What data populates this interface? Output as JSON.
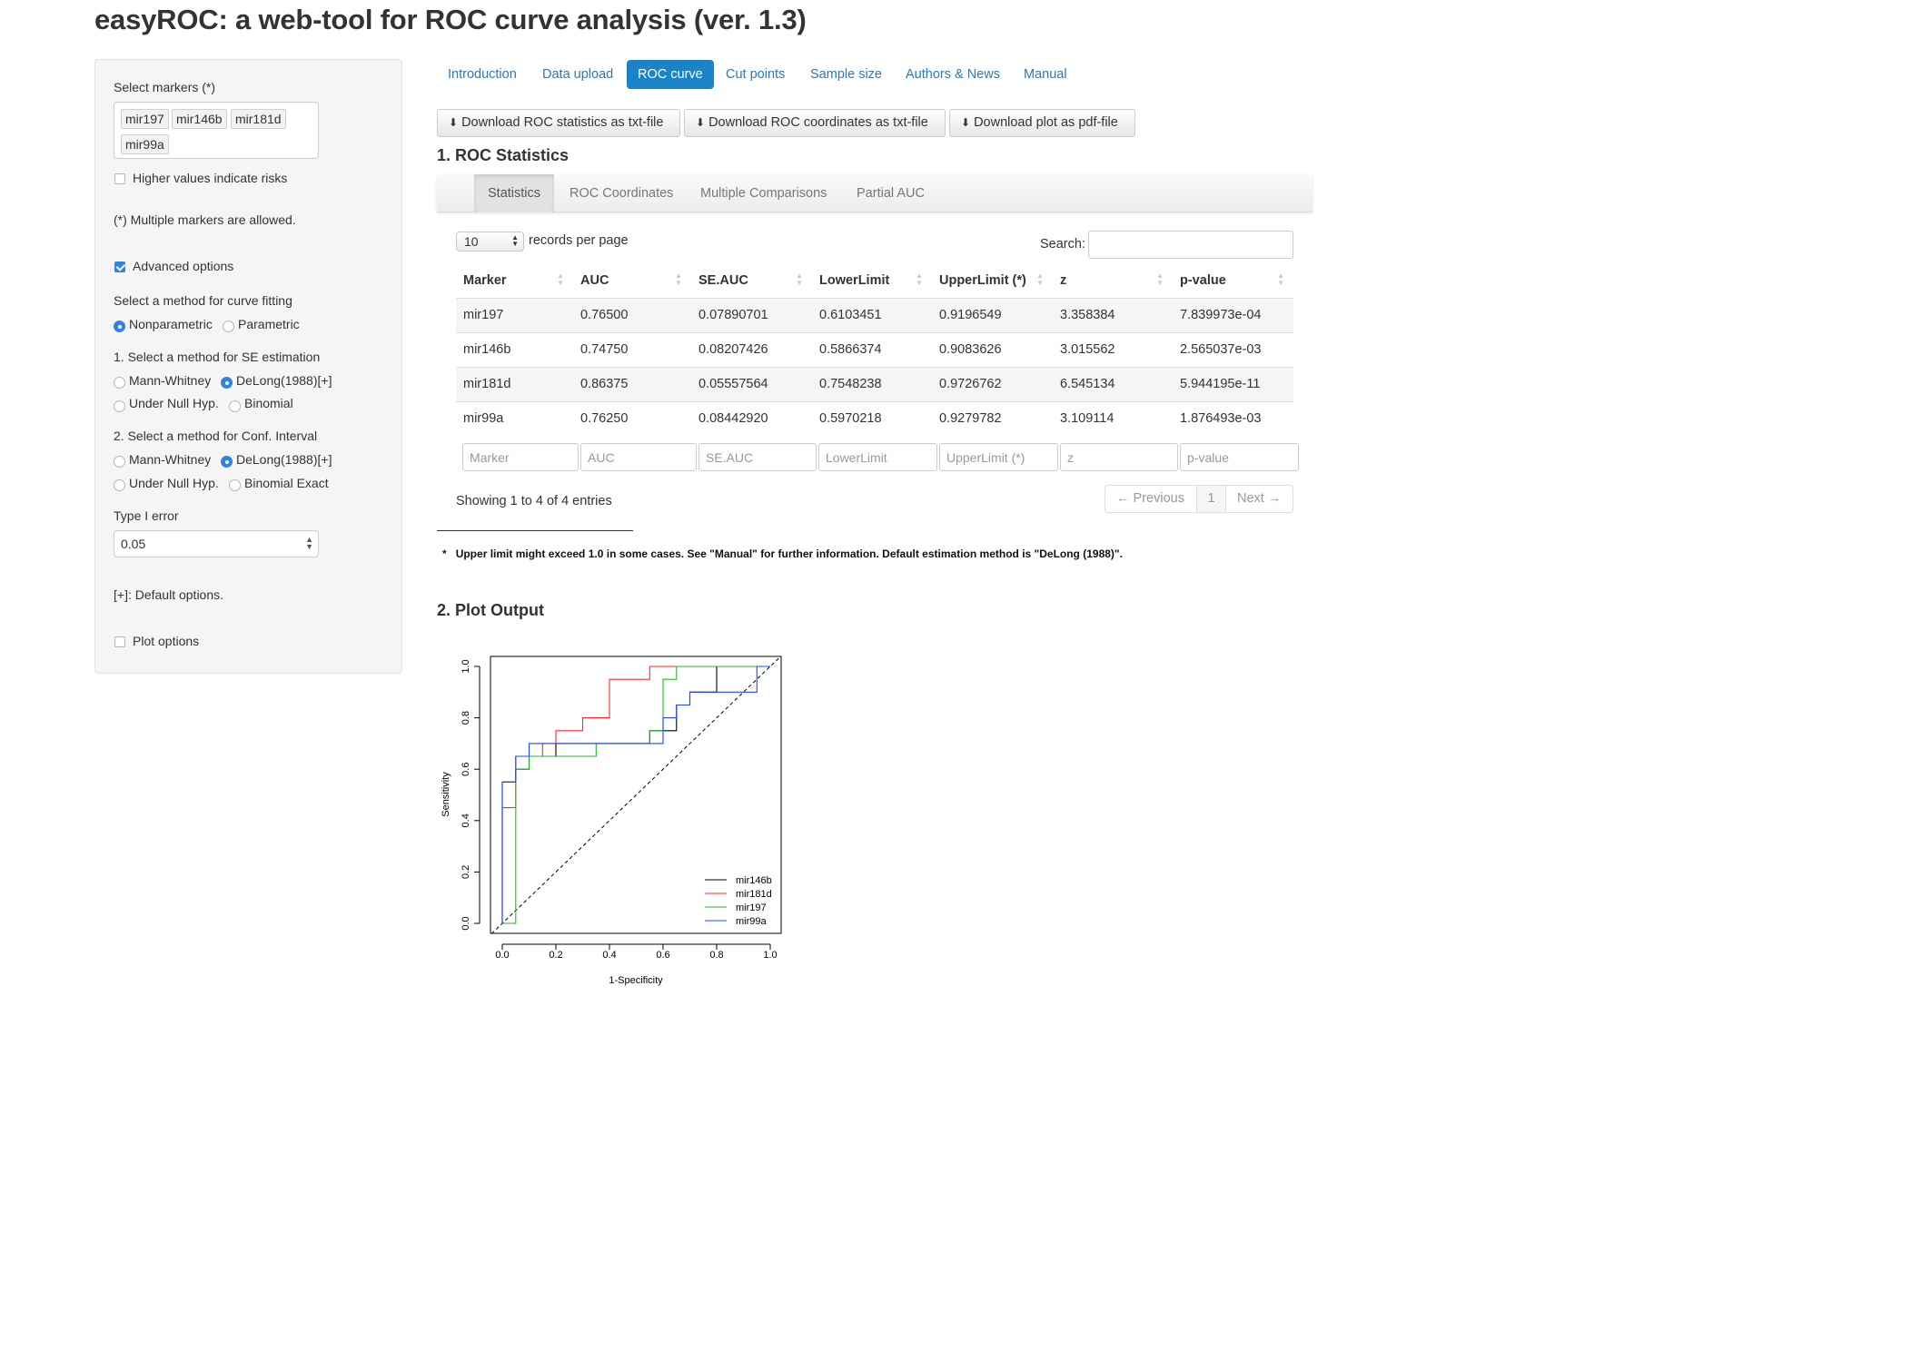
{
  "app": {
    "title": "easyROC: a web-tool for ROC curve analysis (ver. 1.3)"
  },
  "sidebar": {
    "select_markers_label": "Select markers (*)",
    "markers": [
      "mir197",
      "mir146b",
      "mir181d",
      "mir99a"
    ],
    "higher_values_label": "Higher values indicate risks",
    "higher_values_checked": false,
    "multiple_note": "(*) Multiple markers are allowed.",
    "advanced_label": "Advanced options",
    "advanced_checked": true,
    "curve_method_label": "Select a method for curve fitting",
    "curve_options": [
      "Nonparametric",
      "Parametric"
    ],
    "curve_selected": "Nonparametric",
    "se_label": "1. Select a method for SE estimation",
    "se_options": [
      "Mann-Whitney",
      "DeLong(1988)[+]",
      "Under Null Hyp.",
      "Binomial"
    ],
    "se_selected": "DeLong(1988)[+]",
    "ci_label": "2. Select a method for Conf. Interval",
    "ci_options": [
      "Mann-Whitney",
      "DeLong(1988)[+]",
      "Under Null Hyp.",
      "Binomial Exact"
    ],
    "ci_selected": "DeLong(1988)[+]",
    "type1_label": "Type I error",
    "type1_value": "0.05",
    "default_note": "[+]: Default options.",
    "plot_options_label": "Plot options",
    "plot_options_checked": false
  },
  "nav": {
    "tabs": [
      "Introduction",
      "Data upload",
      "ROC curve",
      "Cut points",
      "Sample size",
      "Authors & News",
      "Manual"
    ],
    "active": "ROC curve"
  },
  "downloads": {
    "stats": "Download ROC statistics as txt-file",
    "coords": "Download ROC coordinates as txt-file",
    "plot": "Download plot as pdf-file"
  },
  "roc_stats": {
    "title": "1. ROC Statistics",
    "subtabs": [
      "Statistics",
      "ROC Coordinates",
      "Multiple Comparisons",
      "Partial AUC"
    ],
    "active_subtab": "Statistics",
    "page_length": "10",
    "records_label": "records per page",
    "search_label": "Search:",
    "search_value": "",
    "columns": [
      "Marker",
      "AUC",
      "SE.AUC",
      "LowerLimit",
      "UpperLimit (*)",
      "z",
      "p-value"
    ],
    "rows": [
      [
        "mir197",
        "0.76500",
        "0.07890701",
        "0.6103451",
        "0.9196549",
        "3.358384",
        "7.839973e-04"
      ],
      [
        "mir146b",
        "0.74750",
        "0.08207426",
        "0.5866374",
        "0.9083626",
        "3.015562",
        "2.565037e-03"
      ],
      [
        "mir181d",
        "0.86375",
        "0.05557564",
        "0.7548238",
        "0.9726762",
        "6.545134",
        "5.944195e-11"
      ],
      [
        "mir99a",
        "0.76250",
        "0.08442920",
        "0.5970218",
        "0.9279782",
        "3.109114",
        "1.876493e-03"
      ]
    ],
    "filter_placeholders": [
      "Marker",
      "AUC",
      "SE.AUC",
      "LowerLimit",
      "UpperLimit (*)",
      "z",
      "p-value"
    ],
    "info": "Showing 1 to 4 of 4 entries",
    "pager": {
      "previous": "← Previous",
      "page": "1",
      "next": "Next →"
    },
    "footnote_star": "*",
    "footnote": "Upper limit might exceed 1.0 in some cases. See \"Manual\" for further information. Default estimation method is \"DeLong (1988)\"."
  },
  "plot_output": {
    "title": "2. Plot Output"
  },
  "chart_data": {
    "type": "line",
    "xlabel": "1-Specificity",
    "ylabel": "Sensitivity",
    "xlim": [
      0,
      1
    ],
    "ylim": [
      0,
      1
    ],
    "x_ticks": [
      "0.0",
      "0.2",
      "0.4",
      "0.6",
      "0.8",
      "1.0"
    ],
    "y_ticks": [
      "0.0",
      "0.2",
      "0.4",
      "0.6",
      "0.8",
      "1.0"
    ],
    "legend_position": "bottom-right",
    "diagonal": true,
    "series": [
      {
        "name": "mir146b",
        "color": "#000000",
        "x": [
          0,
          0,
          0.05,
          0.05,
          0.1,
          0.1,
          0.2,
          0.2,
          0.5,
          0.5,
          0.55,
          0.55,
          0.65,
          0.65,
          0.7,
          0.7,
          0.8,
          0.8,
          1.0
        ],
        "y": [
          0,
          0.55,
          0.55,
          0.6,
          0.6,
          0.65,
          0.65,
          0.7,
          0.7,
          0.7,
          0.7,
          0.75,
          0.75,
          0.85,
          0.85,
          0.9,
          0.9,
          1.0,
          1.0
        ]
      },
      {
        "name": "mir181d",
        "color": "#ff2a2a",
        "x": [
          0,
          0,
          0.05,
          0.05,
          0.15,
          0.15,
          0.2,
          0.2,
          0.3,
          0.3,
          0.35,
          0.35,
          0.4,
          0.4,
          0.55,
          0.55,
          1.0
        ],
        "y": [
          0,
          0.45,
          0.45,
          0.65,
          0.65,
          0.7,
          0.7,
          0.75,
          0.75,
          0.8,
          0.8,
          0.8,
          0.8,
          0.95,
          0.95,
          1.0,
          1.0
        ]
      },
      {
        "name": "mir197",
        "color": "#22bb22",
        "x": [
          0,
          0.05,
          0.05,
          0.1,
          0.1,
          0.35,
          0.35,
          0.55,
          0.55,
          0.6,
          0.6,
          0.65,
          0.65,
          1.0
        ],
        "y": [
          0,
          0,
          0.6,
          0.6,
          0.65,
          0.65,
          0.7,
          0.7,
          0.75,
          0.75,
          0.95,
          0.95,
          1.0,
          1.0
        ]
      },
      {
        "name": "mir99a",
        "color": "#2244ff",
        "x": [
          0,
          0,
          0.05,
          0.05,
          0.1,
          0.1,
          0.15,
          0.15,
          0.6,
          0.6,
          0.65,
          0.65,
          0.7,
          0.7,
          0.95,
          0.95,
          1.0
        ],
        "y": [
          0,
          0.55,
          0.55,
          0.65,
          0.65,
          0.7,
          0.7,
          0.7,
          0.7,
          0.8,
          0.8,
          0.85,
          0.85,
          0.9,
          0.9,
          1.0,
          1.0
        ]
      }
    ]
  }
}
